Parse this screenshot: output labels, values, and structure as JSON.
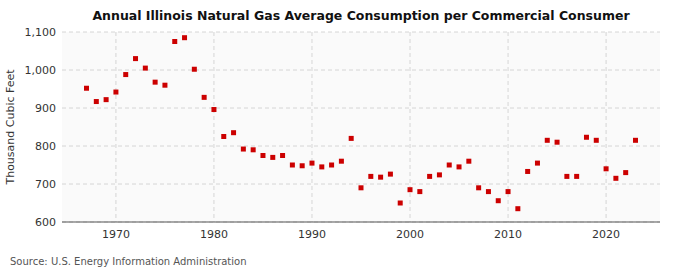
{
  "chart_data": {
    "type": "scatter",
    "title": "Annual Illinois Natural Gas Average Consumption per Commercial Consumer",
    "ylabel": "Thousand Cubic Feet",
    "annotations": [
      "Source: U.S. Energy Information Administration"
    ],
    "x": [
      1967,
      1968,
      1969,
      1970,
      1971,
      1972,
      1973,
      1974,
      1975,
      1976,
      1977,
      1978,
      1979,
      1980,
      1981,
      1982,
      1983,
      1984,
      1985,
      1986,
      1987,
      1988,
      1989,
      1990,
      1991,
      1992,
      1993,
      1994,
      1995,
      1996,
      1997,
      1998,
      1999,
      2000,
      2001,
      2002,
      2003,
      2004,
      2005,
      2006,
      2007,
      2008,
      2009,
      2010,
      2011,
      2012,
      2013,
      2014,
      2015,
      2016,
      2017,
      2018,
      2019,
      2020,
      2021,
      2022,
      2023
    ],
    "values": [
      952,
      917,
      922,
      942,
      988,
      1030,
      1005,
      968,
      960,
      1075,
      1085,
      1002,
      928,
      896,
      825,
      835,
      792,
      790,
      775,
      770,
      775,
      750,
      748,
      755,
      745,
      750,
      760,
      820,
      690,
      720,
      718,
      726,
      650,
      685,
      680,
      720,
      724,
      750,
      745,
      760,
      690,
      680,
      656,
      680,
      635,
      733,
      755,
      815,
      810,
      720,
      720,
      823,
      815,
      740,
      715,
      730,
      815
    ],
    "color": "#cc0000",
    "marker": "square",
    "xlim": [
      1964.5,
      2025.5
    ],
    "xticks": [
      1970,
      1980,
      1990,
      2000,
      2010,
      2020
    ],
    "ylim": [
      600,
      1100
    ],
    "yticks": [
      600,
      700,
      800,
      900,
      {
        "value": 1000,
        "label": "1,000"
      },
      {
        "value": 1100,
        "label": "1,100"
      }
    ],
    "grid": true
  }
}
